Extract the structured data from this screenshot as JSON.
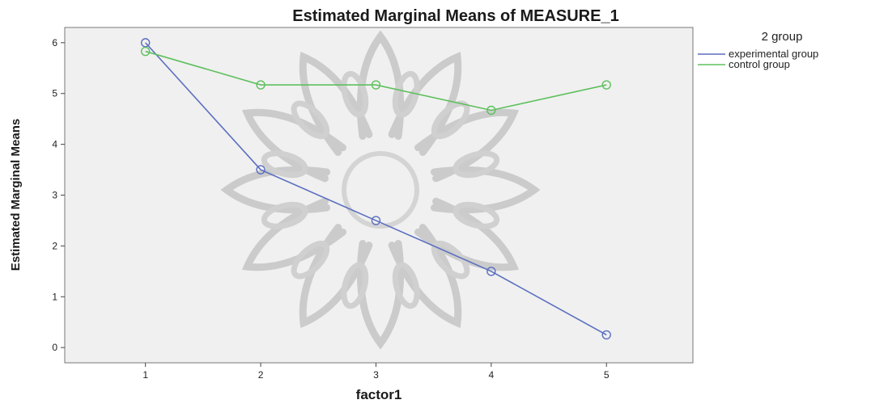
{
  "chart_data": {
    "type": "line",
    "title": "Estimated Marginal Means of MEASURE_1",
    "xlabel": "factor1",
    "ylabel": "Estimated Marginal Means",
    "x": [
      1,
      2,
      3,
      4,
      5
    ],
    "xlim": [
      0.3,
      5.75
    ],
    "ylim": [
      -0.3,
      6.3
    ],
    "yticks": [
      0,
      1,
      2,
      3,
      4,
      5,
      6
    ],
    "grid": false,
    "legend": {
      "title": "2 group",
      "placement": "top-right, outside plot"
    },
    "series": [
      {
        "name": "experimental group",
        "color": "#5b6fc0",
        "values": [
          6.0,
          3.5,
          2.5,
          1.5,
          0.25
        ]
      },
      {
        "name": "control group",
        "color": "#5ec05e",
        "values": [
          5.83,
          5.17,
          5.17,
          4.67,
          5.17
        ]
      }
    ],
    "plot_background": "#f0f0f0",
    "watermark": "decorative star-shaped ornament"
  }
}
